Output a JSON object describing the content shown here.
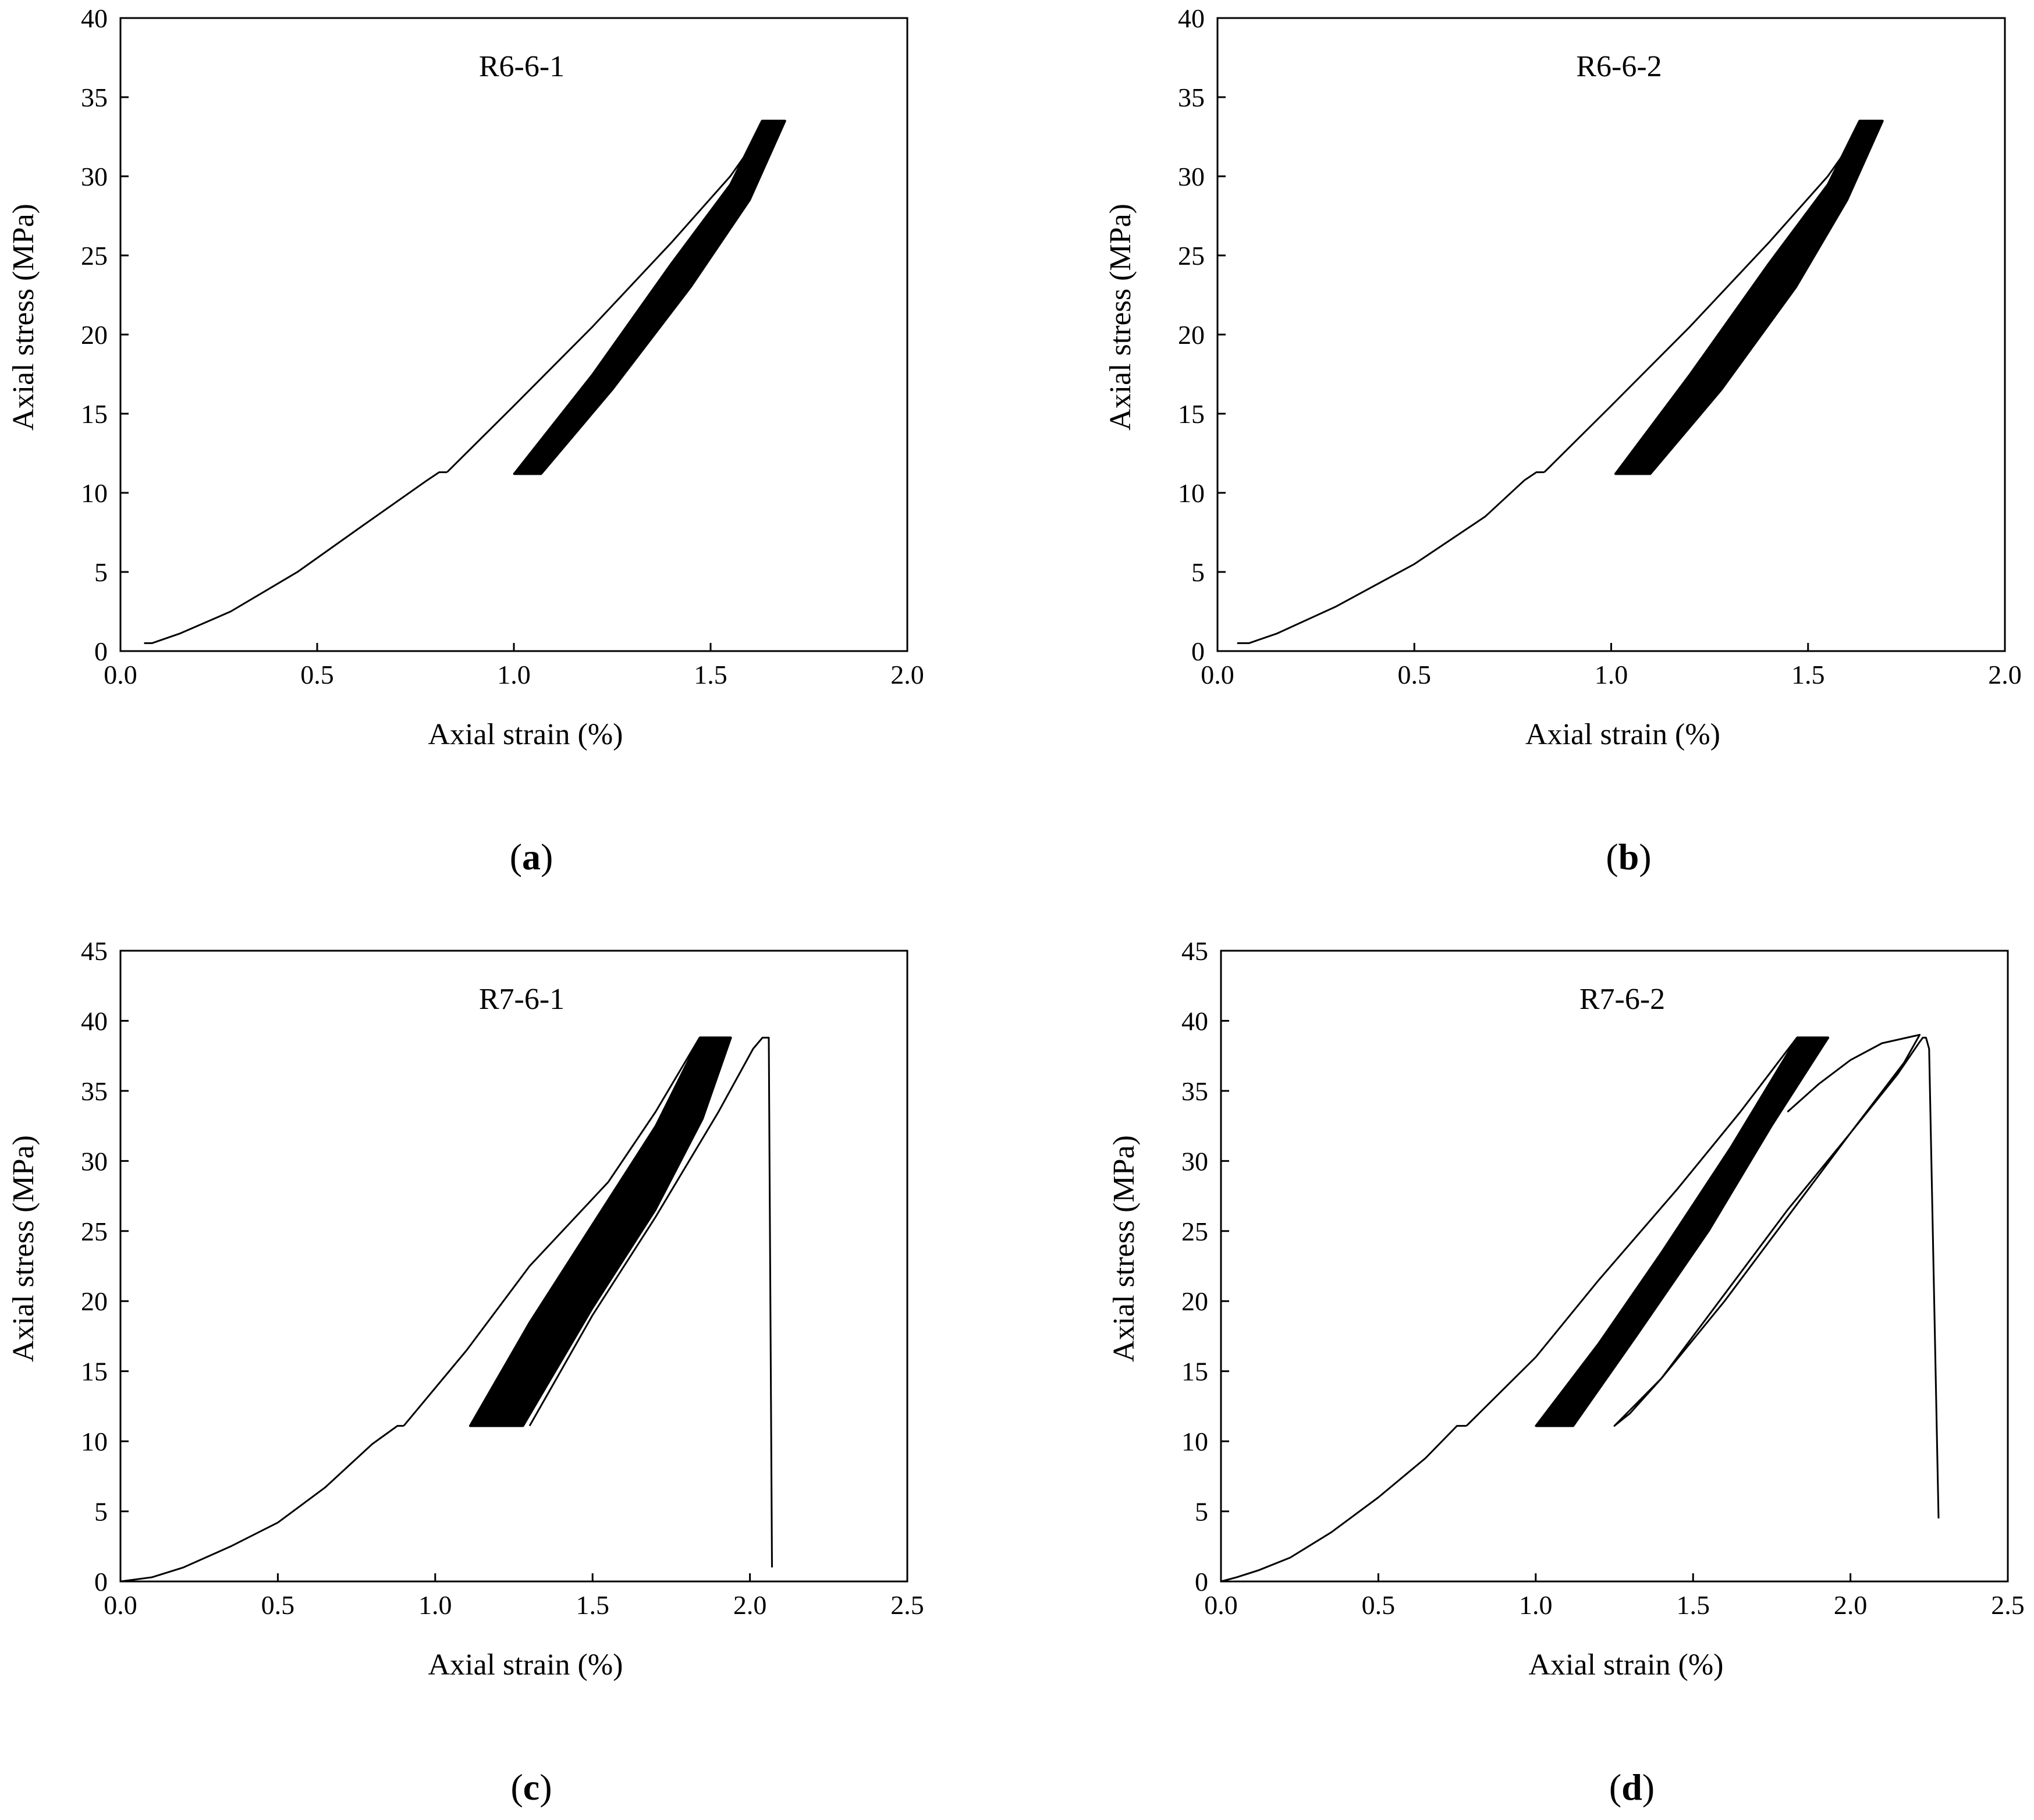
{
  "chart_data": [
    {
      "type": "line",
      "panel_label": "(a)",
      "panel_letter": "a",
      "title": "R6-6-1",
      "xlabel": "Axial strain (%)",
      "ylabel": "Axial stress (MPa)",
      "xlim": [
        0,
        2.0
      ],
      "ylim": [
        0,
        40
      ],
      "xticks": [
        "0.0",
        "0.5",
        "1.0",
        "1.5",
        "2.0"
      ],
      "yticks": [
        "0",
        "5",
        "10",
        "15",
        "20",
        "25",
        "30",
        "35",
        "40"
      ],
      "grid": false,
      "loading_curve": {
        "x": [
          0.06,
          0.08,
          0.15,
          0.28,
          0.45,
          0.62,
          0.78,
          0.81,
          0.83
        ],
        "y": [
          0.5,
          0.5,
          1.1,
          2.5,
          5.0,
          8.0,
          10.8,
          11.3,
          11.3
        ]
      },
      "first_cycle_upper": {
        "x": [
          0.83,
          1.0,
          1.2,
          1.4,
          1.55,
          1.65
        ],
        "y": [
          11.3,
          15.5,
          20.5,
          25.8,
          30.0,
          33.5
        ]
      },
      "cyclic_band": {
        "upper": {
          "x": [
            1.0,
            1.2,
            1.4,
            1.55,
            1.63
          ],
          "y": [
            11.2,
            17.5,
            24.5,
            29.5,
            33.5
          ]
        },
        "lower": {
          "x": [
            1.07,
            1.25,
            1.45,
            1.6,
            1.69
          ],
          "y": [
            11.2,
            16.5,
            23.0,
            28.5,
            33.5
          ]
        },
        "ymin": 11.2,
        "ymax": 33.5
      },
      "failure_branch": null
    },
    {
      "type": "line",
      "panel_label": "(b)",
      "panel_letter": "b",
      "title": "R6-6-2",
      "xlabel": "Axial strain (%)",
      "ylabel": "Axial stress (MPa)",
      "xlim": [
        0,
        2.0
      ],
      "ylim": [
        0,
        40
      ],
      "xticks": [
        "0.0",
        "0.5",
        "1.0",
        "1.5",
        "2.0"
      ],
      "yticks": [
        "0",
        "5",
        "10",
        "15",
        "20",
        "25",
        "30",
        "35",
        "40"
      ],
      "grid": false,
      "loading_curve": {
        "x": [
          0.05,
          0.08,
          0.15,
          0.3,
          0.5,
          0.68,
          0.78,
          0.81,
          0.83
        ],
        "y": [
          0.5,
          0.5,
          1.1,
          2.8,
          5.5,
          8.5,
          10.8,
          11.3,
          11.3
        ]
      },
      "first_cycle_upper": {
        "x": [
          0.83,
          1.0,
          1.2,
          1.4,
          1.55,
          1.65
        ],
        "y": [
          11.3,
          15.5,
          20.5,
          25.8,
          30.0,
          33.5
        ]
      },
      "cyclic_band": {
        "upper": {
          "x": [
            1.01,
            1.2,
            1.4,
            1.55,
            1.63
          ],
          "y": [
            11.2,
            17.5,
            24.5,
            29.5,
            33.5
          ]
        },
        "lower": {
          "x": [
            1.1,
            1.28,
            1.47,
            1.6,
            1.69
          ],
          "y": [
            11.2,
            16.5,
            23.0,
            28.5,
            33.5
          ]
        },
        "ymin": 11.2,
        "ymax": 33.5
      },
      "failure_branch": null
    },
    {
      "type": "line",
      "panel_label": "(c)",
      "panel_letter": "c",
      "title": "R7-6-1",
      "xlabel": "Axial strain (%)",
      "ylabel": "Axial stress (MPa)",
      "xlim": [
        0,
        2.5
      ],
      "ylim": [
        0,
        45
      ],
      "xticks": [
        "0.0",
        "0.5",
        "1.0",
        "1.5",
        "2.0",
        "2.5"
      ],
      "yticks": [
        "0",
        "5",
        "10",
        "15",
        "20",
        "25",
        "30",
        "35",
        "40",
        "45"
      ],
      "grid": false,
      "loading_curve": {
        "x": [
          0.0,
          0.1,
          0.2,
          0.35,
          0.5,
          0.65,
          0.8,
          0.88,
          0.9
        ],
        "y": [
          0.0,
          0.3,
          1.0,
          2.5,
          4.2,
          6.7,
          9.8,
          11.1,
          11.1
        ]
      },
      "first_cycle_upper": {
        "x": [
          0.9,
          1.1,
          1.3,
          1.55,
          1.7,
          1.84
        ],
        "y": [
          11.1,
          16.5,
          22.5,
          28.5,
          33.5,
          38.8
        ]
      },
      "cyclic_band": {
        "upper": {
          "x": [
            1.11,
            1.3,
            1.5,
            1.7,
            1.84
          ],
          "y": [
            11.1,
            18.5,
            25.5,
            32.5,
            38.8
          ]
        },
        "lower": {
          "x": [
            1.28,
            1.5,
            1.7,
            1.85,
            1.94
          ],
          "y": [
            11.1,
            19.5,
            26.5,
            33.0,
            38.8
          ]
        },
        "ymin": 11.1,
        "ymax": 38.8
      },
      "failure_branch": {
        "x": [
          1.3,
          1.5,
          1.7,
          1.9,
          2.01,
          2.04,
          2.06,
          2.07
        ],
        "y": [
          11.1,
          19.0,
          26.0,
          33.5,
          38.0,
          38.8,
          38.8,
          1.0
        ]
      }
    },
    {
      "type": "line",
      "panel_label": "(d)",
      "panel_letter": "d",
      "title": "R7-6-2",
      "xlabel": "Axial strain  (%)",
      "ylabel": "Axial stress (MPa)",
      "xlim": [
        0,
        2.5
      ],
      "ylim": [
        0,
        45
      ],
      "xticks": [
        "0.0",
        "0.5",
        "1.0",
        "1.5",
        "2.0",
        "2.5"
      ],
      "yticks": [
        "0",
        "5",
        "10",
        "15",
        "20",
        "25",
        "30",
        "35",
        "40",
        "45"
      ],
      "grid": false,
      "loading_curve": {
        "x": [
          0.0,
          0.05,
          0.12,
          0.22,
          0.35,
          0.5,
          0.65,
          0.75,
          0.78
        ],
        "y": [
          0.0,
          0.3,
          0.8,
          1.7,
          3.5,
          6.0,
          8.8,
          11.1,
          11.1
        ]
      },
      "first_cycle_upper": {
        "x": [
          0.78,
          1.0,
          1.2,
          1.45,
          1.65,
          1.83
        ],
        "y": [
          11.1,
          16.0,
          21.5,
          28.0,
          33.5,
          38.8
        ]
      },
      "cyclic_band": {
        "upper": {
          "x": [
            1.0,
            1.2,
            1.4,
            1.62,
            1.83
          ],
          "y": [
            11.1,
            17.0,
            23.5,
            31.0,
            38.8
          ]
        },
        "lower": {
          "x": [
            1.12,
            1.32,
            1.55,
            1.75,
            1.93
          ],
          "y": [
            11.1,
            17.5,
            25.0,
            32.5,
            38.8
          ]
        },
        "ymin": 11.1,
        "ymax": 38.8
      },
      "failure_branch": {
        "x": [
          1.8,
          1.9,
          2.0,
          2.1,
          2.2,
          2.22,
          2.17,
          2.0,
          1.8,
          1.6,
          1.4,
          1.3,
          1.25,
          1.4,
          1.6,
          1.8,
          2.0,
          2.15,
          2.22,
          2.23,
          2.24,
          2.25,
          2.28
        ],
        "y": [
          33.5,
          35.5,
          37.2,
          38.4,
          38.9,
          39.0,
          37.0,
          32.0,
          26.0,
          20.0,
          14.5,
          12.0,
          11.1,
          14.5,
          20.5,
          26.5,
          32.0,
          36.2,
          38.5,
          38.8,
          38.8,
          38.0,
          4.5
        ]
      }
    }
  ]
}
